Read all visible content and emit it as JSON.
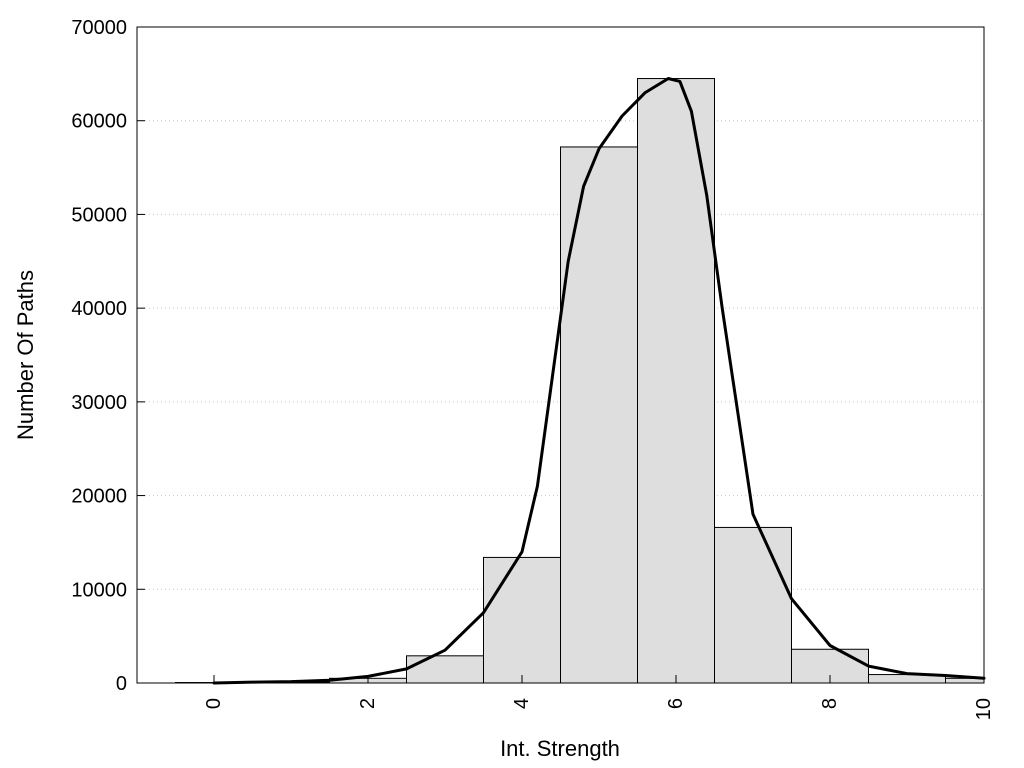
{
  "chart_data": {
    "type": "bar",
    "title": "",
    "xlabel": "Int. Strength",
    "ylabel": "Number Of Paths",
    "xlim": [
      -1,
      10
    ],
    "ylim": [
      0,
      70000
    ],
    "xticks": [
      0,
      2,
      4,
      6,
      8,
      10
    ],
    "yticks": [
      0,
      10000,
      20000,
      30000,
      40000,
      50000,
      60000,
      70000
    ],
    "grid": "horizontal-dotted",
    "legend": "none",
    "bars": {
      "centers": [
        0,
        1,
        2,
        3,
        4,
        5,
        6,
        7,
        8,
        9,
        10
      ],
      "values": [
        50,
        100,
        500,
        2900,
        13400,
        57200,
        64500,
        16600,
        3600,
        900,
        500
      ],
      "color": "#dedede"
    },
    "curve": {
      "x": [
        0,
        0.5,
        1,
        1.5,
        2,
        2.5,
        3,
        3.5,
        4,
        4.2,
        4.4,
        4.6,
        4.8,
        5,
        5.3,
        5.6,
        5.9,
        6.05,
        6.2,
        6.4,
        6.6,
        6.8,
        7,
        7.5,
        8,
        8.5,
        9,
        9.5,
        10
      ],
      "y": [
        0,
        100,
        150,
        300,
        700,
        1500,
        3500,
        7500,
        14000,
        21000,
        33000,
        45000,
        53000,
        57000,
        60500,
        63000,
        64500,
        64200,
        61000,
        52000,
        40000,
        29000,
        18000,
        9000,
        4000,
        1800,
        1000,
        800,
        500
      ],
      "color": "#000000"
    }
  }
}
